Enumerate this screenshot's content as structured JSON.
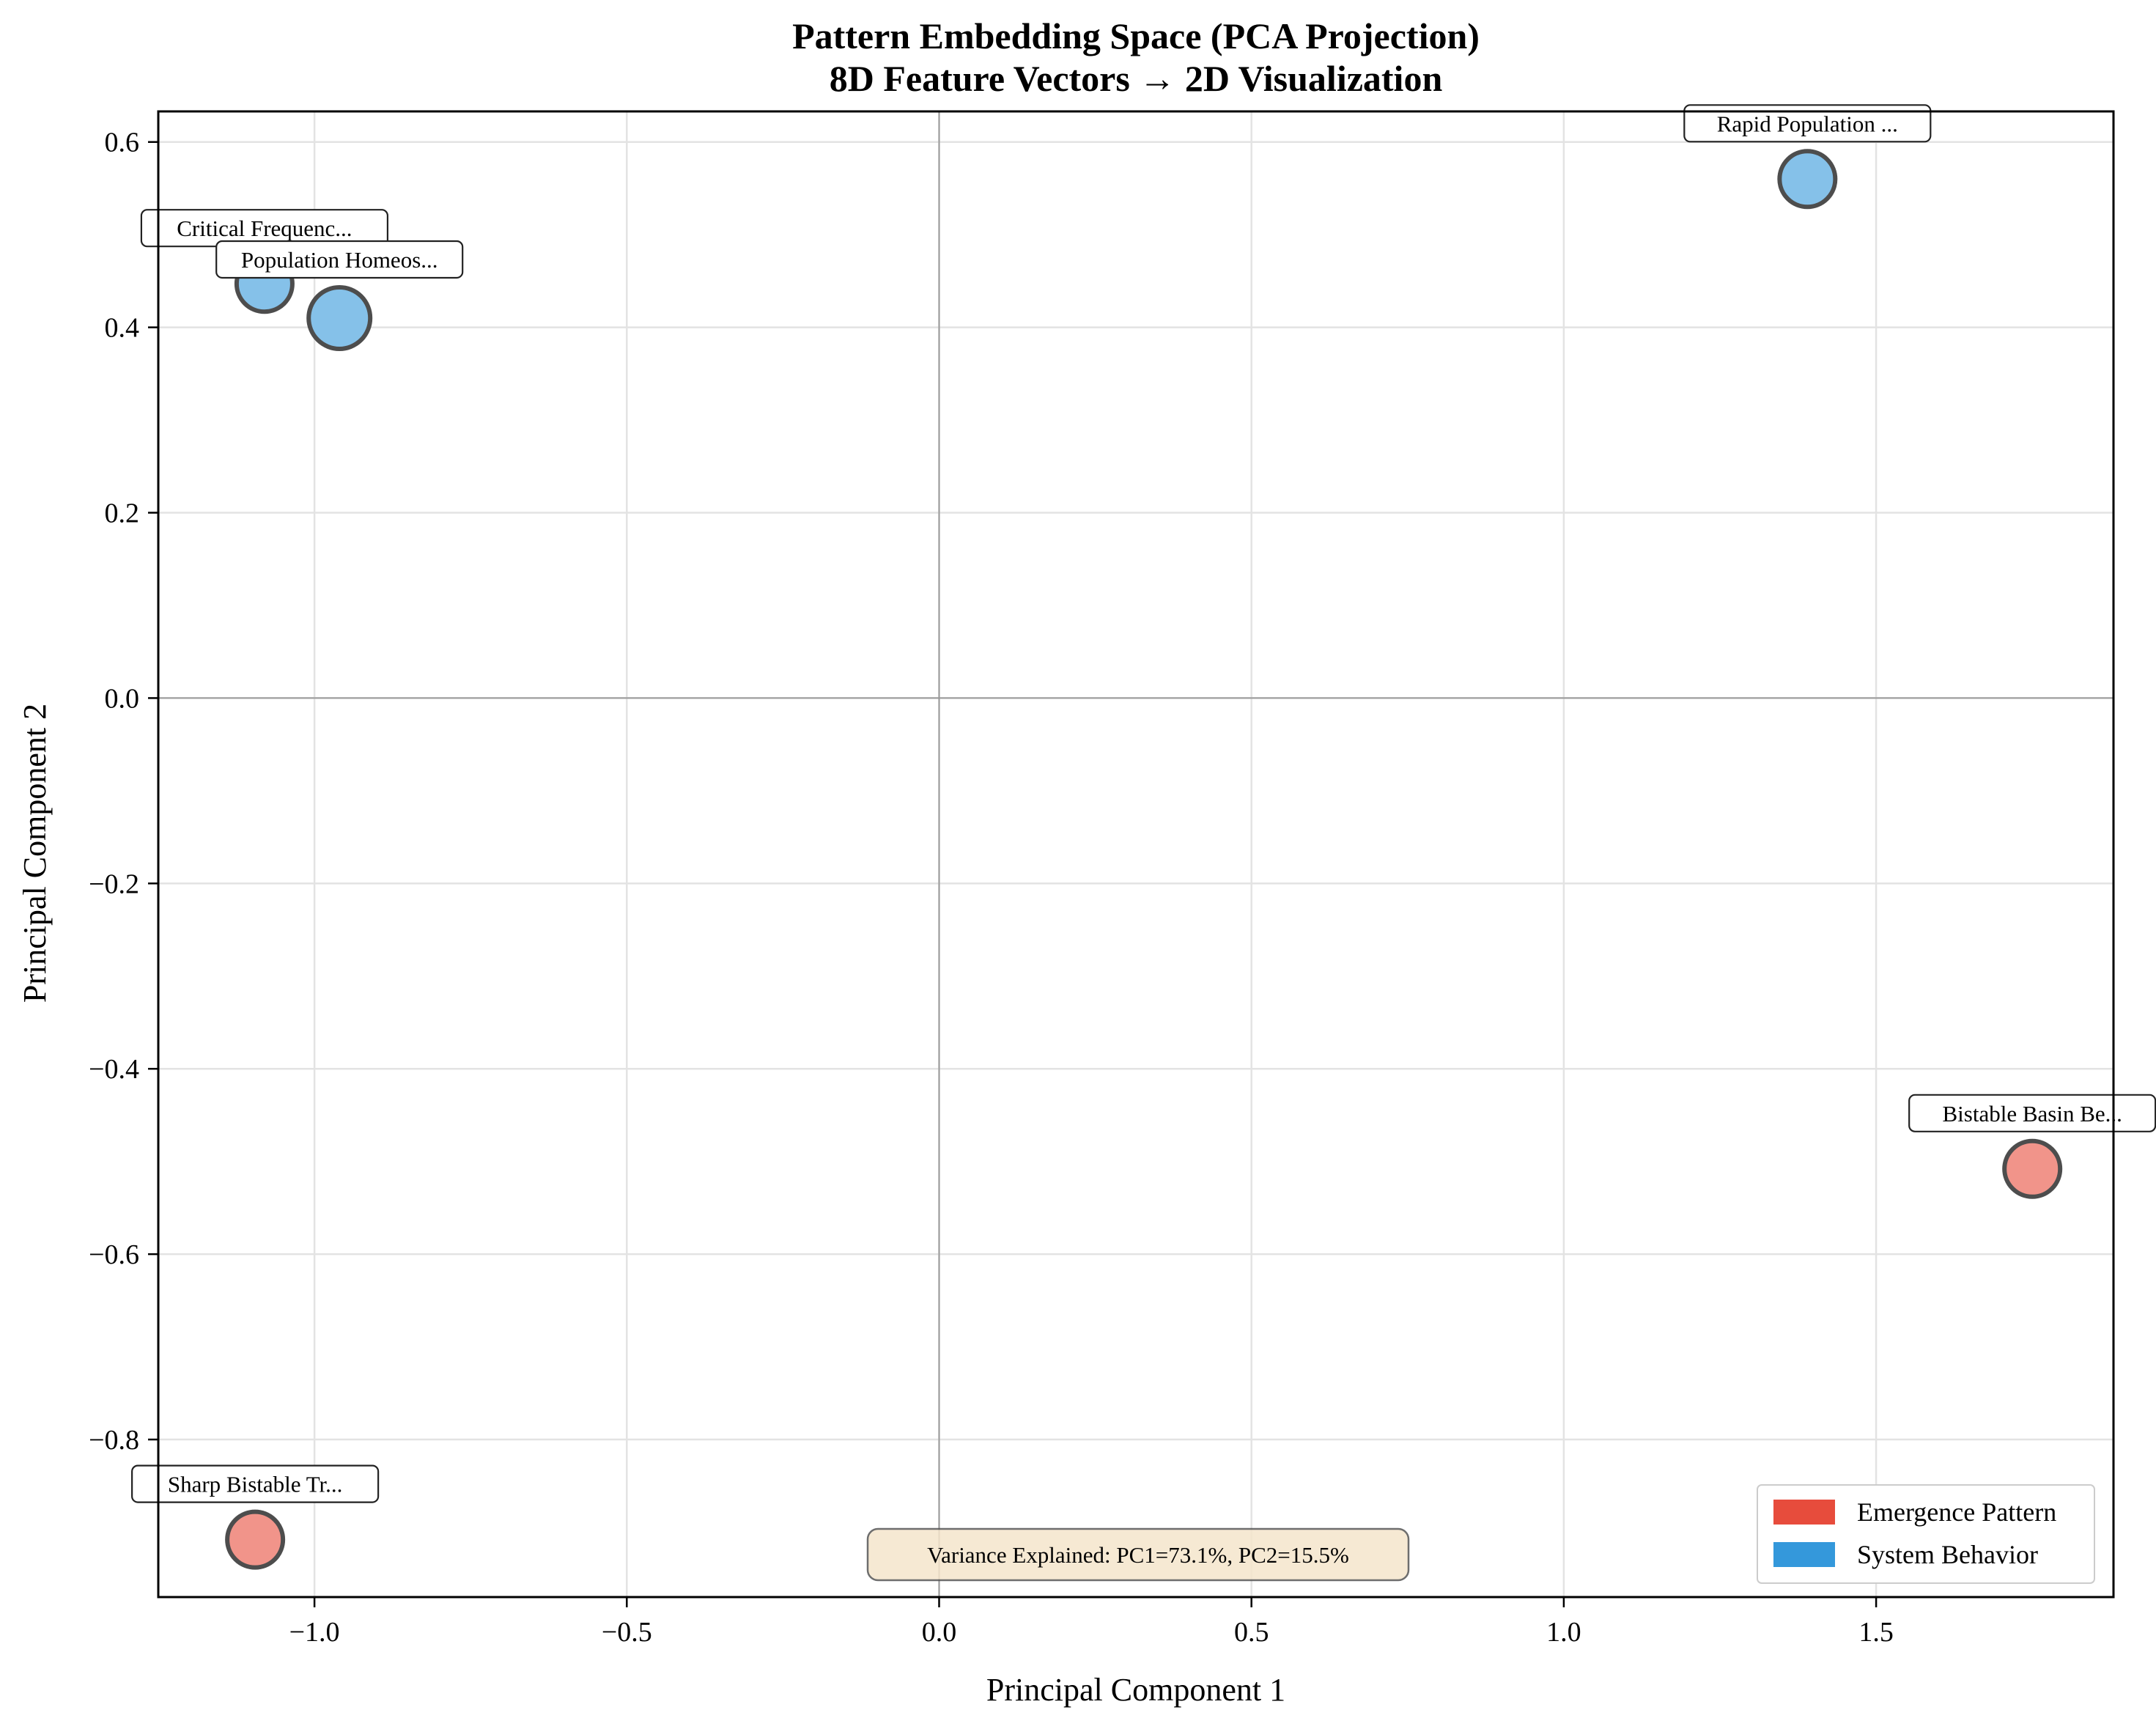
{
  "chart_data": {
    "type": "scatter",
    "title_line1": "Pattern Embedding Space (PCA Projection)",
    "title_line2": "8D Feature Vectors → 2D Visualization",
    "xlabel": "Principal Component 1",
    "ylabel": "Principal Component 2",
    "xlim": [
      -1.25,
      1.88
    ],
    "ylim": [
      -0.97,
      0.633
    ],
    "grid": true,
    "legend_position": "bottom-right",
    "x_ticks": [
      {
        "value": -1.0,
        "label": "−1.0"
      },
      {
        "value": -0.5,
        "label": "−0.5"
      },
      {
        "value": 0.0,
        "label": "0.0"
      },
      {
        "value": 0.5,
        "label": "0.5"
      },
      {
        "value": 1.0,
        "label": "1.0"
      },
      {
        "value": 1.5,
        "label": "1.5"
      }
    ],
    "y_ticks": [
      {
        "value": 0.6,
        "label": "0.6"
      },
      {
        "value": 0.4,
        "label": "0.4"
      },
      {
        "value": 0.2,
        "label": "0.2"
      },
      {
        "value": 0.0,
        "label": "0.0"
      },
      {
        "value": -0.2,
        "label": "−0.2"
      },
      {
        "value": -0.4,
        "label": "−0.4"
      },
      {
        "value": -0.6,
        "label": "−0.6"
      },
      {
        "value": -0.8,
        "label": "−0.8"
      }
    ],
    "legend": [
      {
        "label": "Emergence Pattern",
        "color": "#e74c3c"
      },
      {
        "label": "System Behavior",
        "color": "#3498db"
      }
    ],
    "points": [
      {
        "x": 1.39,
        "y": 0.56,
        "label": "Rapid Population ...",
        "category": "System Behavior",
        "color": "#85c1e9"
      },
      {
        "x": -1.08,
        "y": 0.447,
        "label": "Critical Frequenc...",
        "category": "System Behavior",
        "color": "#85c1e9"
      },
      {
        "x": -0.96,
        "y": 0.41,
        "label": "Population Homeos...",
        "category": "System Behavior",
        "color": "#85c1e9"
      },
      {
        "x": 1.75,
        "y": -0.508,
        "label": "Bistable Basin Be...",
        "category": "Emergence Pattern",
        "color": "#f1948a"
      },
      {
        "x": -1.095,
        "y": -0.908,
        "label": "Sharp Bistable Tr...",
        "category": "Emergence Pattern",
        "color": "#f1948a"
      }
    ],
    "variance_note": "Variance Explained: PC1=73.1%, PC2=15.5%"
  }
}
